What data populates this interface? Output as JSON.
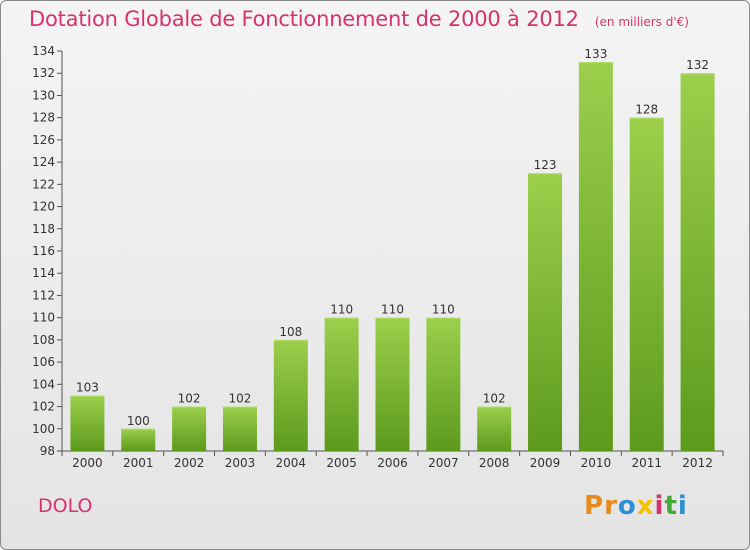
{
  "title": "Dotation Globale de Fonctionnement de 2000 à 2012",
  "unit_label": "(en milliers d'€)",
  "commune": "DOLO",
  "logo": {
    "letters": [
      "P",
      "r",
      "o",
      "x",
      "i",
      "t",
      "i"
    ],
    "colors": [
      "#e8891c",
      "#e8891c",
      "#2e8fd6",
      "#f2c200",
      "#d6336e",
      "#44a83a",
      "#2e8fd6"
    ]
  },
  "colors": {
    "title": "#d6336e",
    "bar_light": "#9ccf4c",
    "bar_dark": "#5c9a1c"
  },
  "chart_data": {
    "type": "bar",
    "title": "Dotation Globale de Fonctionnement de 2000 à 2012",
    "subtitle": "(en milliers d'€)",
    "xlabel": "",
    "ylabel": "",
    "categories": [
      "2000",
      "2001",
      "2002",
      "2003",
      "2004",
      "2005",
      "2006",
      "2007",
      "2008",
      "2009",
      "2010",
      "2011",
      "2012"
    ],
    "values": [
      103,
      100,
      102,
      102,
      108,
      110,
      110,
      110,
      102,
      123,
      133,
      128,
      132
    ],
    "ylim": [
      98,
      134
    ],
    "yticks": [
      98,
      100,
      102,
      104,
      106,
      108,
      110,
      112,
      114,
      116,
      118,
      120,
      122,
      124,
      126,
      128,
      130,
      132,
      134
    ],
    "grid": false,
    "legend": "none"
  }
}
